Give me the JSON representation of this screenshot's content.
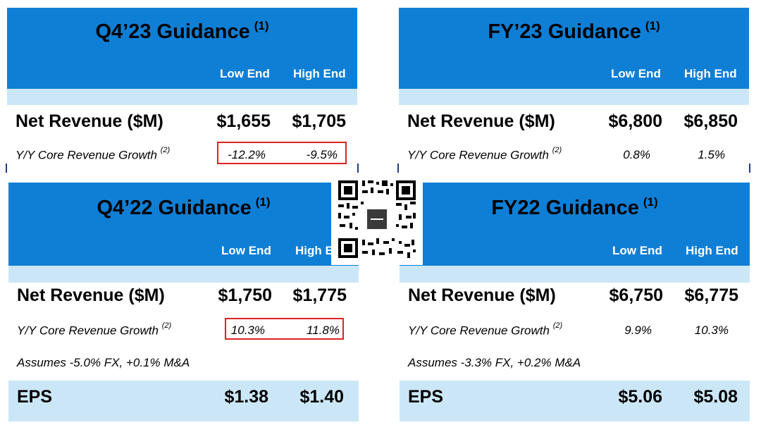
{
  "panels": {
    "q4_23": {
      "title": "Q4’23 Guidance",
      "note_mark": "(1)",
      "col_low": "Low End",
      "col_high": "High End",
      "net_revenue_label": "Net Revenue ($M)",
      "net_low": "$1,655",
      "net_high": "$1,705",
      "growth_label": "Y/Y Core Revenue Growth",
      "growth_mark": "(2)",
      "growth_low": "-12.2%",
      "growth_high": "-9.5%"
    },
    "fy_23": {
      "title": "FY’23 Guidance",
      "note_mark": "(1)",
      "col_low": "Low End",
      "col_high": "High End",
      "net_revenue_label": "Net Revenue ($M)",
      "net_low": "$6,800",
      "net_high": "$6,850",
      "growth_label": "Y/Y Core Revenue Growth",
      "growth_mark": "(2)",
      "growth_low": "0.8%",
      "growth_high": "1.5%"
    },
    "q4_22": {
      "title": "Q4’22 Guidance",
      "note_mark": "(1)",
      "col_low": "Low End",
      "col_high": "High E",
      "net_revenue_label": "Net Revenue ($M)",
      "net_low": "$1,750",
      "net_high": "$1,775",
      "growth_label": "Y/Y Core Revenue Growth",
      "growth_mark": "(2)",
      "growth_low": "10.3%",
      "growth_high": "11.8%",
      "assumes": "Assumes -5.0% FX, +0.1% M&A",
      "eps_label": "EPS",
      "eps_low": "$1.38",
      "eps_high": "$1.40"
    },
    "fy22": {
      "title": "FY22 Guidance",
      "note_mark": "(1)",
      "col_low": "Low End",
      "col_high": "High End",
      "net_revenue_label": "Net Revenue ($M)",
      "net_low": "$6,750",
      "net_high": "$6,775",
      "growth_label": "Y/Y Core Revenue Growth",
      "growth_mark": "(2)",
      "growth_low": "9.9%",
      "growth_high": "10.3%",
      "assumes": "Assumes -3.3% FX, +0.2% M&A",
      "eps_label": "EPS",
      "eps_low": "$5.06",
      "eps_high": "$5.08"
    }
  },
  "colors": {
    "header_blue": "#0f7fd6",
    "band_light_blue": "#cbe7f7",
    "highlight_red": "#e02020"
  }
}
